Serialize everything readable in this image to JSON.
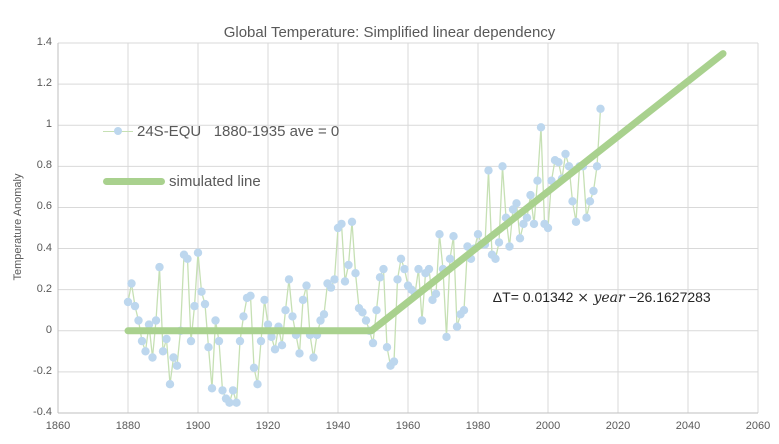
{
  "title": "Global Temperature: Simplified linear dependency",
  "legend": {
    "items": [
      {
        "label": "24S-EQU   1880-1935 ave = 0",
        "marker": "blue-dot-with-line"
      },
      {
        "label": "simulated line",
        "marker": "thick-green-line"
      }
    ]
  },
  "annotation": {
    "text_plain": "ΔT= 0.01342 × year −26.1627283",
    "part1": "ΔT= 0.01342 ",
    "operator": "× ",
    "variable": "year",
    "part2": " −26.1627283"
  },
  "colors": {
    "marker": "#bdd7ee",
    "series_line": "#c6e0b4",
    "simulated_line": "#a9d18e",
    "grid": "#d9d9d9",
    "axis": "#bfbfbf",
    "tick_text": "#595959",
    "title_text": "#595959",
    "annotation_text": "#262626",
    "background": "#ffffff"
  },
  "chart_data": {
    "type": "line",
    "title": "Global Temperature: Simplified linear dependency",
    "xlabel": "",
    "ylabel": "Temperature Anomaly",
    "xlim": [
      1860,
      2060
    ],
    "ylim": [
      -0.4,
      1.4
    ],
    "grid": true,
    "legend_position": "inside-top-left",
    "x_ticks": [
      1860,
      1880,
      1900,
      1920,
      1940,
      1960,
      1980,
      2000,
      2020,
      2040,
      2060
    ],
    "x_tick_labels": [
      "1860",
      "1880",
      "1900",
      "1920",
      "1940",
      "1960",
      "1980",
      "2000",
      "2020",
      "2040",
      "2060"
    ],
    "y_ticks": [
      -0.4,
      -0.2,
      0,
      0.2,
      0.4,
      0.6,
      0.8,
      1,
      1.2,
      1.4
    ],
    "y_tick_labels": [
      "-0.4",
      "-0.2",
      "0",
      "0.2",
      "0.4",
      "0.6",
      "0.8",
      "1",
      "1.2",
      "1.4"
    ],
    "series": [
      {
        "name": "24S-EQU   1880-1935 ave = 0",
        "type": "scatter-line",
        "marker_color": "#bdd7ee",
        "line_color": "#c6e0b4",
        "x_start": 1880,
        "x_step": 1,
        "x_end": 2015,
        "values": [
          0.14,
          0.23,
          0.12,
          0.05,
          -0.05,
          -0.1,
          0.03,
          -0.13,
          0.05,
          0.31,
          -0.1,
          -0.04,
          -0.26,
          -0.13,
          -0.17,
          0.0,
          0.37,
          0.35,
          -0.05,
          0.12,
          0.38,
          0.19,
          0.13,
          -0.08,
          -0.28,
          0.05,
          -0.05,
          -0.29,
          -0.33,
          -0.35,
          -0.29,
          -0.35,
          -0.05,
          0.07,
          0.16,
          0.17,
          -0.18,
          -0.26,
          -0.05,
          0.15,
          0.03,
          -0.03,
          -0.09,
          0.02,
          -0.07,
          0.1,
          0.25,
          0.07,
          -0.02,
          -0.11,
          0.15,
          0.22,
          -0.02,
          -0.13,
          -0.02,
          0.05,
          0.08,
          0.23,
          0.21,
          0.25,
          0.5,
          0.52,
          0.24,
          0.32,
          0.53,
          0.28,
          0.11,
          0.09,
          0.05,
          0.0,
          -0.06,
          0.1,
          0.26,
          0.3,
          -0.08,
          -0.17,
          -0.15,
          0.25,
          0.35,
          0.3,
          0.22,
          0.2,
          0.18,
          0.3,
          0.05,
          0.28,
          0.3,
          0.15,
          0.18,
          0.47,
          0.3,
          -0.03,
          0.35,
          0.46,
          0.02,
          0.08,
          0.1,
          0.41,
          0.35,
          0.4,
          0.47,
          0.42,
          0.42,
          0.78,
          0.37,
          0.35,
          0.43,
          0.8,
          0.55,
          0.41,
          0.59,
          0.62,
          0.45,
          0.52,
          0.55,
          0.66,
          0.52,
          0.73,
          0.99,
          0.52,
          0.5,
          0.73,
          0.83,
          0.82,
          0.74,
          0.86,
          0.8,
          0.63,
          0.53,
          0.8,
          0.8,
          0.55,
          0.63,
          0.68,
          0.8,
          1.08
        ]
      },
      {
        "name": "simulated line",
        "type": "line",
        "color": "#a9d18e",
        "width": 7,
        "points": [
          [
            1880,
            0
          ],
          [
            1949.53,
            0
          ],
          [
            2050,
            1.3484
          ]
        ],
        "equation_slope": 0.01342,
        "equation_intercept": -26.1627283
      }
    ]
  }
}
